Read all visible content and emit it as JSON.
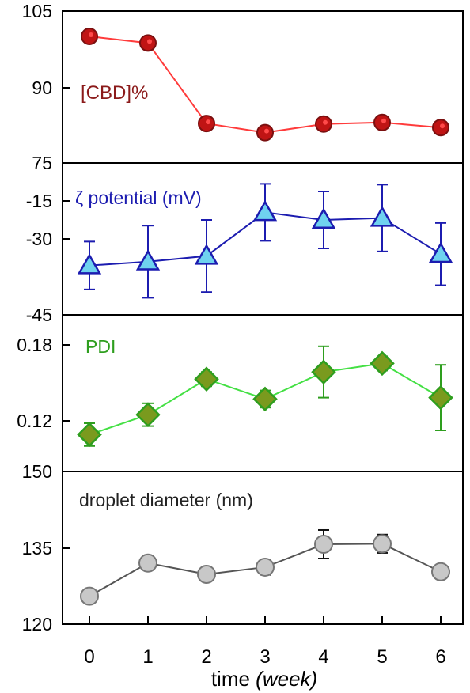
{
  "chart_data": [
    {
      "type": "line",
      "panel_label": "[CBD]%",
      "label_color": "#8b1a1a",
      "line_color": "#ff3b3b",
      "marker": "circle",
      "marker_fill": "#c01414",
      "marker_edge": "#7a1010",
      "error_bars": false,
      "ylim": [
        75,
        105
      ],
      "yticks": [
        "105",
        "90",
        "75"
      ],
      "x": [
        0,
        1,
        2,
        3,
        4,
        5,
        6
      ],
      "y": [
        100,
        98.7,
        82.8,
        81.0,
        82.7,
        83.0,
        82.0
      ],
      "err": []
    },
    {
      "type": "line",
      "panel_label": "ζ potential (mV)",
      "label_color": "#1c1cb0",
      "line_color": "#1c1cb0",
      "marker": "triangle",
      "marker_fill": "#6fd2ef",
      "marker_edge": "#1c1cb0",
      "error_bars": true,
      "ylim": [
        -45,
        -5
      ],
      "yticks": [
        "-15",
        "-30",
        "-45"
      ],
      "x": [
        0,
        1,
        2,
        3,
        4,
        5,
        6
      ],
      "y": [
        -32,
        -31,
        -29.5,
        -18,
        -20,
        -19.5,
        -29
      ],
      "err": [
        6.3,
        9.5,
        9.5,
        7.5,
        7.5,
        8.8,
        8.2
      ]
    },
    {
      "type": "line",
      "panel_label": "PDI",
      "label_color": "#2e9e1e",
      "line_color": "#44e044",
      "marker": "diamond",
      "marker_fill": "#7a9a1e",
      "marker_edge": "#2e9e1e",
      "error_bars": true,
      "ylim": [
        0.1,
        0.18
      ],
      "yticks": [
        "0.18",
        "0.12"
      ],
      "x": [
        0,
        1,
        2,
        3,
        4,
        5,
        6
      ],
      "y": [
        0.117,
        0.131,
        0.156,
        0.142,
        0.161,
        0.167,
        0.143
      ],
      "err": [
        0.008,
        0.008,
        0.005,
        0.006,
        0.018,
        0.005,
        0.023
      ]
    },
    {
      "type": "line",
      "panel_label": "droplet diameter (nm)",
      "label_color": "#222222",
      "line_color": "#555555",
      "marker": "circle",
      "marker_fill": "#c8c8c8",
      "marker_edge": "#777777",
      "error_bars": true,
      "ylim": [
        120,
        150
      ],
      "yticks": [
        "150",
        "135",
        "120"
      ],
      "x": [
        0,
        1,
        2,
        3,
        4,
        5,
        6
      ],
      "y": [
        125.5,
        132,
        129.8,
        131.2,
        135.7,
        135.8,
        130.3
      ],
      "err": [
        1.3,
        0.8,
        0.7,
        1.5,
        2.8,
        1.8,
        0.3
      ]
    }
  ],
  "x_axis": {
    "ticks": [
      "0",
      "1",
      "2",
      "3",
      "4",
      "5",
      "6"
    ],
    "label_main": "time ",
    "label_unit": "(week)"
  }
}
